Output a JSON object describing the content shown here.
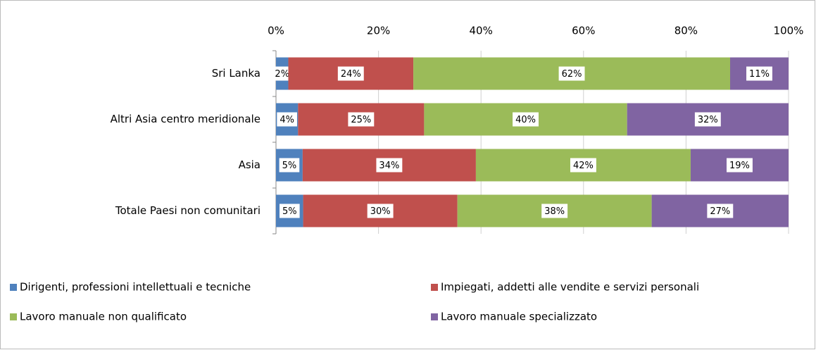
{
  "chart_data": {
    "type": "stacked-bar-horizontal",
    "categories": [
      "Sri Lanka",
      "Altri Asia centro meridionale",
      "Asia",
      "Totale Paesi non comunitari"
    ],
    "series": [
      {
        "name": "Dirigenti, professioni intellettuali e tecniche",
        "color": "#4f81bd",
        "values": [
          2.4,
          4.3,
          5.2,
          5.3
        ],
        "value_labels": [
          "2%",
          "4%",
          "5%",
          "5%"
        ]
      },
      {
        "name": "Impiegati, addetti alle vendite e servizi personali",
        "color": "#c0504d",
        "values": [
          24.4,
          24.6,
          33.8,
          30.1
        ],
        "value_labels": [
          "24%",
          "25%",
          "34%",
          "30%"
        ]
      },
      {
        "name": "Lavoro manuale non qualificato",
        "color": "#9bbb59",
        "values": [
          61.8,
          39.6,
          41.9,
          37.9
        ],
        "value_labels": [
          "62%",
          "40%",
          "42%",
          "38%"
        ]
      },
      {
        "name": "Lavoro manuale specializzato",
        "color": "#8064a2",
        "values": [
          11.4,
          31.5,
          19.1,
          26.7
        ],
        "value_labels": [
          "11%",
          "32%",
          "19%",
          "27%"
        ]
      }
    ],
    "xlim": [
      0,
      100
    ],
    "xticks": [
      {
        "value": 0,
        "label": "0%"
      },
      {
        "value": 20,
        "label": "20%"
      },
      {
        "value": 40,
        "label": "40%"
      },
      {
        "value": 60,
        "label": "60%"
      },
      {
        "value": 80,
        "label": "80%"
      },
      {
        "value": 100,
        "label": "100%"
      }
    ],
    "grid": true
  }
}
